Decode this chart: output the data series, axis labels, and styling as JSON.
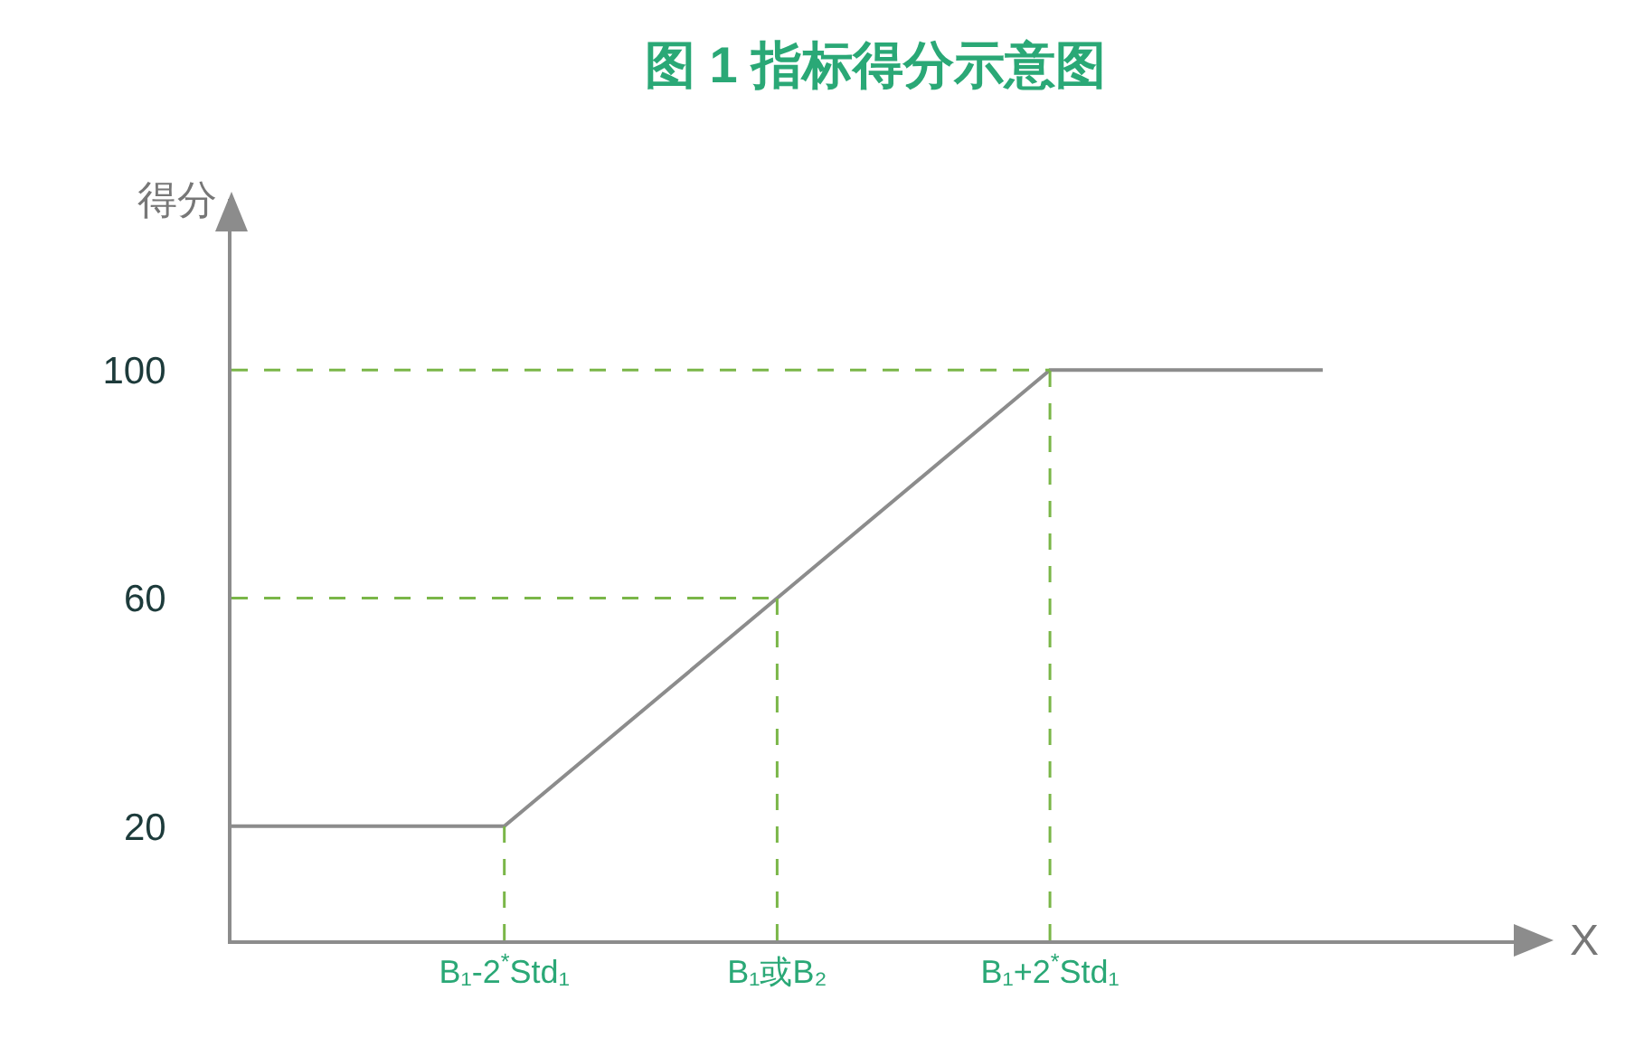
{
  "chart_data": {
    "type": "line",
    "title": "图 1 指标得分示意图",
    "xlabel": "X",
    "ylabel": "得分",
    "categories": [
      null,
      "B₁-2$^{*}$Std₁",
      "B₁或B₂",
      "B₁+2$^{*}$Std₁",
      null
    ],
    "series": [
      {
        "color": "#8c8c8c",
        "values": [
          20,
          20,
          60,
          100,
          100
        ]
      }
    ],
    "ylim": [
      0,
      130
    ],
    "yticks": [
      20,
      60,
      100
    ],
    "ref_lines": [
      {
        "axis": "y",
        "value": 100,
        "color": "#7ab648",
        "line_style": "dashed"
      },
      {
        "axis": "y",
        "value": 60,
        "color": "#7ab648",
        "line_style": "dashed"
      },
      {
        "axis": "x",
        "value": "B₁-2$^{*}$Std₁",
        "color": "#7ab648",
        "line_style": "dashed"
      },
      {
        "axis": "x",
        "value": "B₁或B₂",
        "color": "#7ab648",
        "line_style": "dashed"
      },
      {
        "axis": "x",
        "value": "B₁+2$^{*}$Std₁",
        "color": "#7ab648",
        "line_style": "dashed"
      }
    ],
    "grid": false,
    "marker": "none",
    "line_style": "solid"
  }
}
